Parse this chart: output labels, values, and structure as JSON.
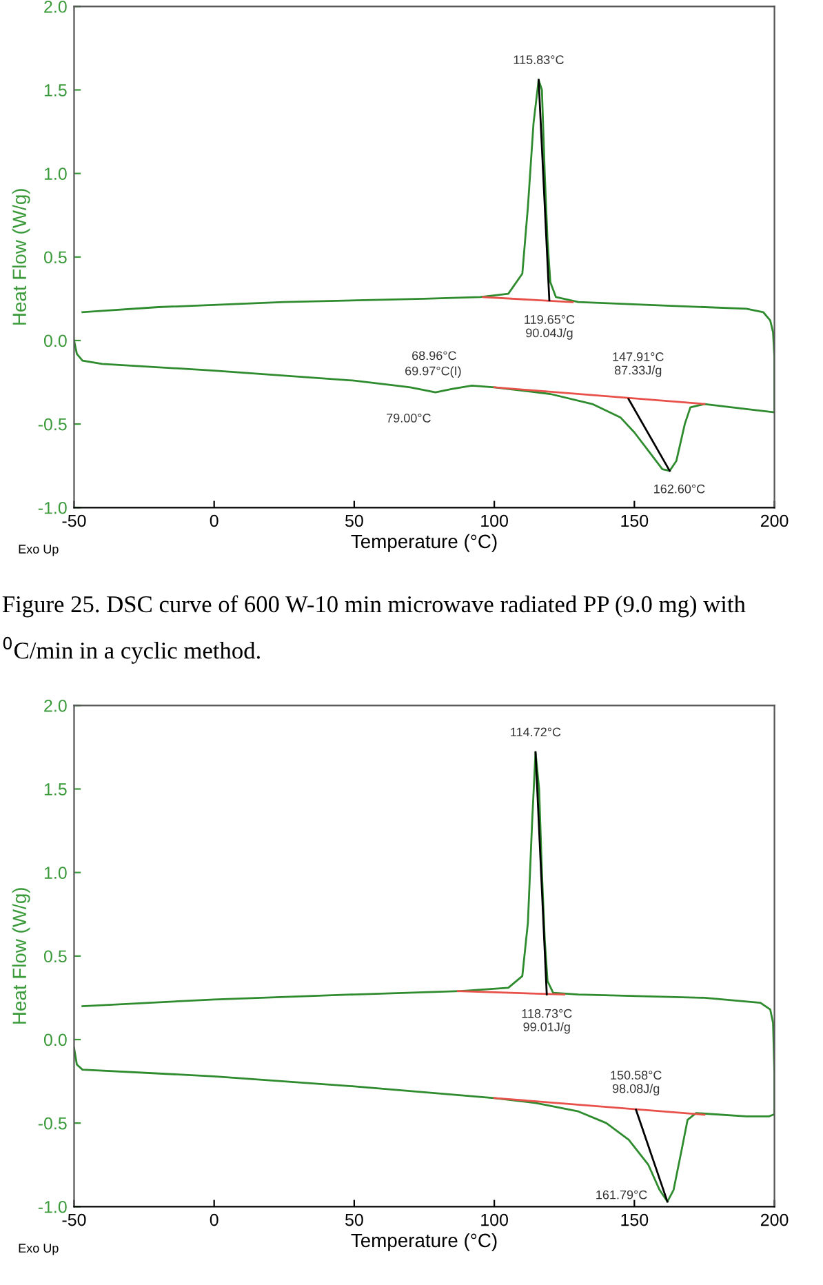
{
  "chart_data": [
    {
      "type": "line",
      "xlabel": "Temperature (°C)",
      "ylabel": "Heat Flow (W/g)",
      "xlim": [
        -50,
        200
      ],
      "ylim": [
        -1.0,
        2.0
      ],
      "xticks": [
        -50,
        0,
        50,
        100,
        150,
        200
      ],
      "yticks": [
        {
          "value": -1.0,
          "label": "-1.0"
        },
        {
          "value": -0.5,
          "label": "-0.5"
        },
        {
          "value": 0.0,
          "label": "0.0"
        },
        {
          "value": 0.5,
          "label": "0.5"
        },
        {
          "value": 1.0,
          "label": "1.0"
        },
        {
          "value": 1.5,
          "label": "1.5"
        },
        {
          "value": 2.0,
          "label": "2.0"
        }
      ],
      "grid": false,
      "legend": false,
      "series": [
        {
          "color": "#2e8b2e",
          "x": [
            -47,
            -20,
            25,
            75,
            95,
            105,
            110,
            112,
            114,
            115.83,
            117,
            118,
            119,
            120,
            122,
            130,
            160,
            190,
            196,
            198.5,
            199.5,
            200,
            200
          ],
          "values": [
            0.17,
            0.2,
            0.23,
            0.25,
            0.26,
            0.28,
            0.4,
            0.8,
            1.3,
            1.56,
            1.5,
            1.0,
            0.6,
            0.35,
            0.26,
            0.23,
            0.21,
            0.19,
            0.17,
            0.12,
            0.05,
            -0.1,
            -0.43
          ]
        },
        {
          "color": "#2e8b2e",
          "x": [
            -50,
            -49,
            -47,
            -40,
            0,
            50,
            65,
            70,
            79,
            85,
            92,
            100,
            120,
            135,
            145,
            150,
            155,
            160,
            162.6,
            165,
            168,
            170,
            175,
            190,
            200
          ],
          "values": [
            0.0,
            -0.08,
            -0.12,
            -0.14,
            -0.18,
            -0.24,
            -0.27,
            -0.28,
            -0.31,
            -0.29,
            -0.27,
            -0.28,
            -0.32,
            -0.38,
            -0.46,
            -0.55,
            -0.66,
            -0.77,
            -0.78,
            -0.72,
            -0.5,
            -0.4,
            -0.38,
            -0.41,
            -0.43
          ]
        },
        {
          "color": "#e8504a",
          "x": [
            96,
            128
          ],
          "values": [
            0.26,
            0.23
          ]
        },
        {
          "color": "#e8504a",
          "x": [
            100,
            175
          ],
          "values": [
            -0.28,
            -0.38
          ]
        },
        {
          "color": "#000000",
          "x": [
            115.83,
            119.65
          ],
          "values": [
            1.56,
            0.24
          ]
        },
        {
          "color": "#000000",
          "x": [
            147.91,
            162.6
          ],
          "values": [
            -0.35,
            -0.78
          ]
        }
      ],
      "annotations": [
        "Exo Up",
        "Figure 25. DSC curve of 600 W-10 min microwave radiated PP (9.0 mg) with\n$^{0}$C/min in a cyclic method.",
        {
          "text": "115.83°C",
          "x": 115.83,
          "y": 1.56
        },
        {
          "text": "119.65°C\n90.04J/g",
          "x": 119.65,
          "y": 0.24
        },
        {
          "text": "68.96°C",
          "x": 68.96,
          "y": -0.28
        },
        {
          "text": "69.97°C(I)",
          "x": 69.97,
          "y": -0.28
        },
        {
          "text": "79.00°C",
          "x": 79.0,
          "y": -0.31
        },
        {
          "text": "147.91°C\n87.33J/g",
          "x": 147.91,
          "y": -0.35
        },
        {
          "text": "162.60°C",
          "x": 162.6,
          "y": -0.78
        }
      ]
    },
    {
      "type": "line",
      "xlabel": "Temperature (°C)",
      "ylabel": "Heat Flow (W/g)",
      "xlim": [
        -50,
        200
      ],
      "ylim": [
        -1.0,
        2.0
      ],
      "xticks": [
        -50,
        0,
        50,
        100,
        150,
        200
      ],
      "yticks": [
        {
          "value": -1.0,
          "label": "-1.0"
        },
        {
          "value": -0.5,
          "label": "-0.5"
        },
        {
          "value": 0.0,
          "label": "0.0"
        },
        {
          "value": 0.5,
          "label": "0.5"
        },
        {
          "value": 1.0,
          "label": "1.0"
        },
        {
          "value": 1.5,
          "label": "1.5"
        },
        {
          "value": 2.0,
          "label": "2.0"
        }
      ],
      "grid": false,
      "legend": false,
      "series": [
        {
          "color": "#2e8b2e",
          "x": [
            -47,
            0,
            50,
            88,
            105,
            110,
            112,
            113.5,
            114.72,
            116,
            117,
            118,
            119,
            121,
            130,
            175,
            195,
            198.5,
            199.5,
            200,
            200
          ],
          "values": [
            0.2,
            0.24,
            0.27,
            0.29,
            0.31,
            0.38,
            0.7,
            1.3,
            1.72,
            1.5,
            1.0,
            0.6,
            0.35,
            0.28,
            0.27,
            0.25,
            0.22,
            0.18,
            0.1,
            -0.2,
            -0.45
          ]
        },
        {
          "color": "#2e8b2e",
          "x": [
            -50,
            -49,
            -47,
            0,
            50,
            100,
            115,
            130,
            140,
            148,
            155,
            159,
            161.79,
            164,
            167,
            169,
            172,
            190,
            198,
            199.5
          ],
          "values": [
            -0.05,
            -0.15,
            -0.18,
            -0.22,
            -0.28,
            -0.35,
            -0.38,
            -0.43,
            -0.5,
            -0.6,
            -0.75,
            -0.9,
            -0.97,
            -0.9,
            -0.65,
            -0.48,
            -0.44,
            -0.46,
            -0.46,
            -0.45
          ]
        },
        {
          "color": "#e8504a",
          "x": [
            87,
            125
          ],
          "values": [
            0.29,
            0.27
          ]
        },
        {
          "color": "#e8504a",
          "x": [
            100,
            175
          ],
          "values": [
            -0.35,
            -0.45
          ]
        },
        {
          "color": "#000000",
          "x": [
            114.72,
            118.73
          ],
          "values": [
            1.72,
            0.27
          ]
        },
        {
          "color": "#000000",
          "x": [
            150.58,
            161.79
          ],
          "values": [
            -0.42,
            -0.97
          ]
        }
      ],
      "annotations": [
        "Exo Up",
        {
          "text": "114.72°C",
          "x": 114.72,
          "y": 1.72
        },
        {
          "text": "118.73°C\n99.01J/g",
          "x": 118.73,
          "y": 0.27
        },
        {
          "text": "150.58°C\n98.08J/g",
          "x": 150.58,
          "y": -0.42
        },
        {
          "text": "161.79°C",
          "x": 161.79,
          "y": -0.97
        }
      ]
    }
  ]
}
